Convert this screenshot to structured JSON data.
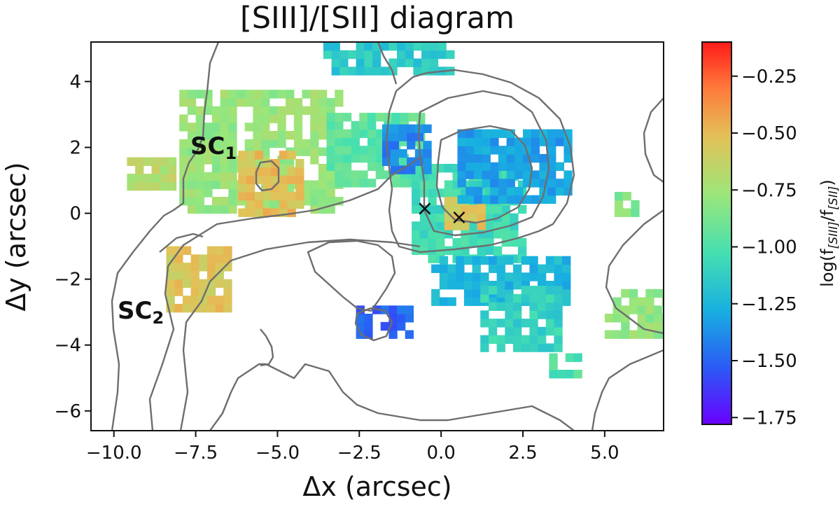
{
  "chart_data": {
    "type": "heatmap",
    "title": "[SIII]/[SII] diagram",
    "xlabel": "Δx (arcsec)",
    "ylabel": "Δy (arcsec)",
    "xlim": [
      -10.7,
      6.8
    ],
    "ylim": [
      -6.6,
      5.2
    ],
    "xticks": [
      -10.0,
      -7.5,
      -5.0,
      -2.5,
      0.0,
      2.5,
      5.0
    ],
    "xtick_labels": [
      "−10.0",
      "−7.5",
      "−5.0",
      "−2.5",
      "0.0",
      "2.5",
      "5.0"
    ],
    "yticks": [
      4,
      2,
      0,
      -2,
      -4,
      -6
    ],
    "ytick_labels": [
      "4",
      "2",
      "0",
      "−2",
      "−4",
      "−6"
    ],
    "colorbar": {
      "label_prefix": "log(f",
      "label_num": "[SIII]",
      "label_den": "[SII]",
      "colormap": "rainbow",
      "range": [
        -1.78,
        -0.1
      ],
      "ticks": [
        -0.25,
        -0.5,
        -0.75,
        -1.0,
        -1.25,
        -1.5,
        -1.75
      ],
      "tick_labels": [
        "−0.25",
        "−0.50",
        "−0.75",
        "−1.00",
        "−1.25",
        "−1.50",
        "−1.75"
      ]
    },
    "annotations": [
      {
        "base": "SC",
        "sub": "1",
        "x": -7.8,
        "y": 2.1
      },
      {
        "base": "SC",
        "sub": "2",
        "x": -10.0,
        "y": -2.7
      }
    ],
    "markers": [
      {
        "symbol": "×",
        "x": -0.5,
        "y": 0.15
      },
      {
        "symbol": "×",
        "x": 0.55,
        "y": -0.12
      }
    ],
    "regions": [
      {
        "x": [
          -8.0,
          -3.0
        ],
        "y": [
          0.0,
          3.7
        ],
        "value": -0.78
      },
      {
        "x": [
          -9.6,
          -8.3
        ],
        "y": [
          0.7,
          1.7
        ],
        "value": -0.68
      },
      {
        "x": [
          -6.2,
          -4.4
        ],
        "y": [
          -0.1,
          1.9
        ],
        "value": -0.52
      },
      {
        "x": [
          -3.5,
          -0.7
        ],
        "y": [
          0.8,
          3.0
        ],
        "value": -0.95
      },
      {
        "x": [
          -3.6,
          0.4
        ],
        "y": [
          4.2,
          5.2
        ],
        "value": -1.15
      },
      {
        "x": [
          -8.4,
          -6.4
        ],
        "y": [
          -3.0,
          -1.2
        ],
        "value": -0.55
      },
      {
        "x": [
          -0.9,
          2.6
        ],
        "y": [
          -1.5,
          1.4
        ],
        "value": -1.05
      },
      {
        "x": [
          0.1,
          1.3
        ],
        "y": [
          -0.5,
          0.5
        ],
        "value": -0.55
      },
      {
        "x": [
          0.5,
          3.8
        ],
        "y": [
          0.3,
          2.4
        ],
        "value": -1.32
      },
      {
        "x": [
          -1.8,
          -0.4
        ],
        "y": [
          1.2,
          2.6
        ],
        "value": -1.4
      },
      {
        "x": [
          -0.3,
          3.8
        ],
        "y": [
          -2.8,
          -1.3
        ],
        "value": -1.25
      },
      {
        "x": [
          -2.6,
          -1.0
        ],
        "y": [
          -3.8,
          -2.8
        ],
        "value": -1.5
      },
      {
        "x": [
          3.3,
          4.3
        ],
        "y": [
          -5.0,
          -4.3
        ],
        "value": -1.0
      },
      {
        "x": [
          5.0,
          6.8
        ],
        "y": [
          -3.8,
          -2.3
        ],
        "value": -0.8
      },
      {
        "x": [
          5.3,
          5.9
        ],
        "y": [
          -0.1,
          0.6
        ],
        "value": -0.85
      },
      {
        "x": [
          1.2,
          3.5
        ],
        "y": [
          -4.2,
          -2.4
        ],
        "value": -1.1
      }
    ]
  }
}
